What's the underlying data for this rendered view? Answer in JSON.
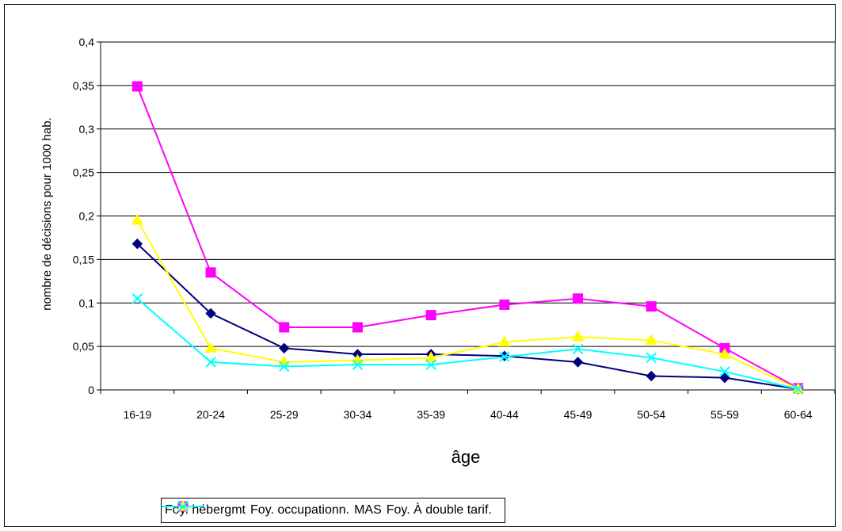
{
  "chart_data": {
    "type": "line",
    "title": "",
    "xlabel": "âge",
    "ylabel": "nombre de décisions pour 1000 hab.",
    "categories": [
      "16-19",
      "20-24",
      "25-29",
      "30-34",
      "35-39",
      "40-44",
      "45-49",
      "50-54",
      "55-59",
      "60-64"
    ],
    "ylim": [
      0,
      0.4
    ],
    "yticks": [
      "0",
      "0,05",
      "0,1",
      "0,15",
      "0,2",
      "0,25",
      "0,3",
      "0,35",
      "0,4"
    ],
    "grid": "horizontal",
    "legend_position": "bottom",
    "series": [
      {
        "name": "Foy. hébergmt",
        "color": "#000080",
        "marker": "diamond",
        "values": [
          0.168,
          0.088,
          0.048,
          0.041,
          0.041,
          0.039,
          0.032,
          0.016,
          0.014,
          0.001
        ]
      },
      {
        "name": "Foy. occupationn.",
        "color": "#FF00FF",
        "marker": "square",
        "values": [
          0.349,
          0.135,
          0.072,
          0.072,
          0.086,
          0.098,
          0.105,
          0.096,
          0.048,
          0.002
        ]
      },
      {
        "name": "MAS",
        "color": "#FFFF00",
        "marker": "triangle",
        "values": [
          0.195,
          0.048,
          0.032,
          0.034,
          0.037,
          0.055,
          0.061,
          0.057,
          0.041,
          0.001
        ]
      },
      {
        "name": "Foy. À double tarif.",
        "color": "#00FFFF",
        "marker": "x",
        "values": [
          0.105,
          0.032,
          0.027,
          0.029,
          0.029,
          0.038,
          0.047,
          0.037,
          0.021,
          0.001
        ]
      }
    ]
  }
}
